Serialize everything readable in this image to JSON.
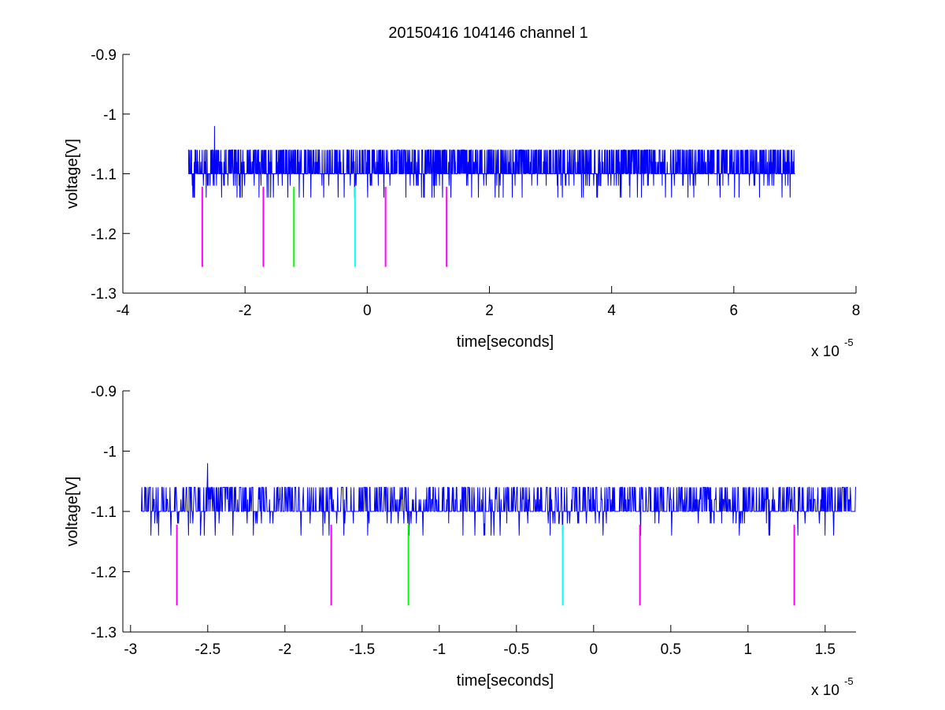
{
  "figure_title": "20150416 104146 channel 1",
  "chart_data": [
    {
      "type": "line",
      "id": "top",
      "title": "20150416 104146 channel 1",
      "xlabel": "time[seconds]",
      "ylabel": "voltage[V]",
      "xlim": [
        -4,
        8
      ],
      "ylim": [
        -1.3,
        -0.9
      ],
      "x_multiplier_text": "x 10",
      "x_multiplier_exponent": "-5",
      "xticks": [
        -4,
        -2,
        0,
        2,
        4,
        6,
        8
      ],
      "xtick_labels": [
        "-4",
        "-2",
        "0",
        "2",
        "4",
        "6",
        "8"
      ],
      "yticks": [
        -1.3,
        -1.2,
        -1.1,
        -1,
        -0.9
      ],
      "ytick_labels": [
        "-1.3",
        "-1.2",
        "-1.1",
        "-1",
        "-0.9"
      ],
      "grid": false,
      "signal": {
        "name": "",
        "color": "#0000ff",
        "x_range": [
          -2.93,
          7.0
        ],
        "baseline": -1.1,
        "levels": [
          -1.14,
          -1.12,
          -1.1,
          -1.08,
          -1.06,
          -1.02
        ],
        "spike_max": -1.02,
        "spike_max_at": -2.5
      },
      "markers": [
        {
          "x": -2.7,
          "y_top": -1.122,
          "y_bottom": -1.256,
          "color": "#ff00ff"
        },
        {
          "x": -1.7,
          "y_top": -1.122,
          "y_bottom": -1.256,
          "color": "#ff00ff"
        },
        {
          "x": -1.2,
          "y_top": -1.122,
          "y_bottom": -1.256,
          "color": "#00ff00"
        },
        {
          "x": -0.2,
          "y_top": -1.122,
          "y_bottom": -1.256,
          "color": "#00ffff"
        },
        {
          "x": 0.3,
          "y_top": -1.122,
          "y_bottom": -1.256,
          "color": "#ff00ff"
        },
        {
          "x": 1.3,
          "y_top": -1.122,
          "y_bottom": -1.256,
          "color": "#ff00ff"
        }
      ]
    },
    {
      "type": "line",
      "id": "bottom",
      "title": "",
      "xlabel": "time[seconds]",
      "ylabel": "voltage[V]",
      "xlim": [
        -3.05,
        1.7
      ],
      "ylim": [
        -1.3,
        -0.9
      ],
      "x_multiplier_text": "x 10",
      "x_multiplier_exponent": "-5",
      "xticks": [
        -3,
        -2.5,
        -2,
        -1.5,
        -1,
        -0.5,
        0,
        0.5,
        1,
        1.5
      ],
      "xtick_labels": [
        "-3",
        "-2.5",
        "-2",
        "-1.5",
        "-1",
        "-0.5",
        "0",
        "0.5",
        "1",
        "1.5"
      ],
      "yticks": [
        -1.3,
        -1.2,
        -1.1,
        -1,
        -0.9
      ],
      "ytick_labels": [
        "-1.3",
        "-1.2",
        "-1.1",
        "-1",
        "-0.9"
      ],
      "grid": false,
      "signal": {
        "name": "",
        "color": "#0000ff",
        "x_range": [
          -2.93,
          1.7
        ],
        "baseline": -1.1,
        "levels": [
          -1.14,
          -1.12,
          -1.1,
          -1.08,
          -1.06,
          -1.02
        ],
        "spike_max": -1.02,
        "spike_max_at": -2.5
      },
      "markers": [
        {
          "x": -2.7,
          "y_top": -1.122,
          "y_bottom": -1.256,
          "color": "#ff00ff"
        },
        {
          "x": -1.7,
          "y_top": -1.122,
          "y_bottom": -1.256,
          "color": "#ff00ff"
        },
        {
          "x": -1.2,
          "y_top": -1.122,
          "y_bottom": -1.256,
          "color": "#00ff00"
        },
        {
          "x": -0.2,
          "y_top": -1.122,
          "y_bottom": -1.256,
          "color": "#00ffff"
        },
        {
          "x": 0.3,
          "y_top": -1.122,
          "y_bottom": -1.256,
          "color": "#ff00ff"
        },
        {
          "x": 1.3,
          "y_top": -1.122,
          "y_bottom": -1.256,
          "color": "#ff00ff"
        }
      ]
    }
  ]
}
